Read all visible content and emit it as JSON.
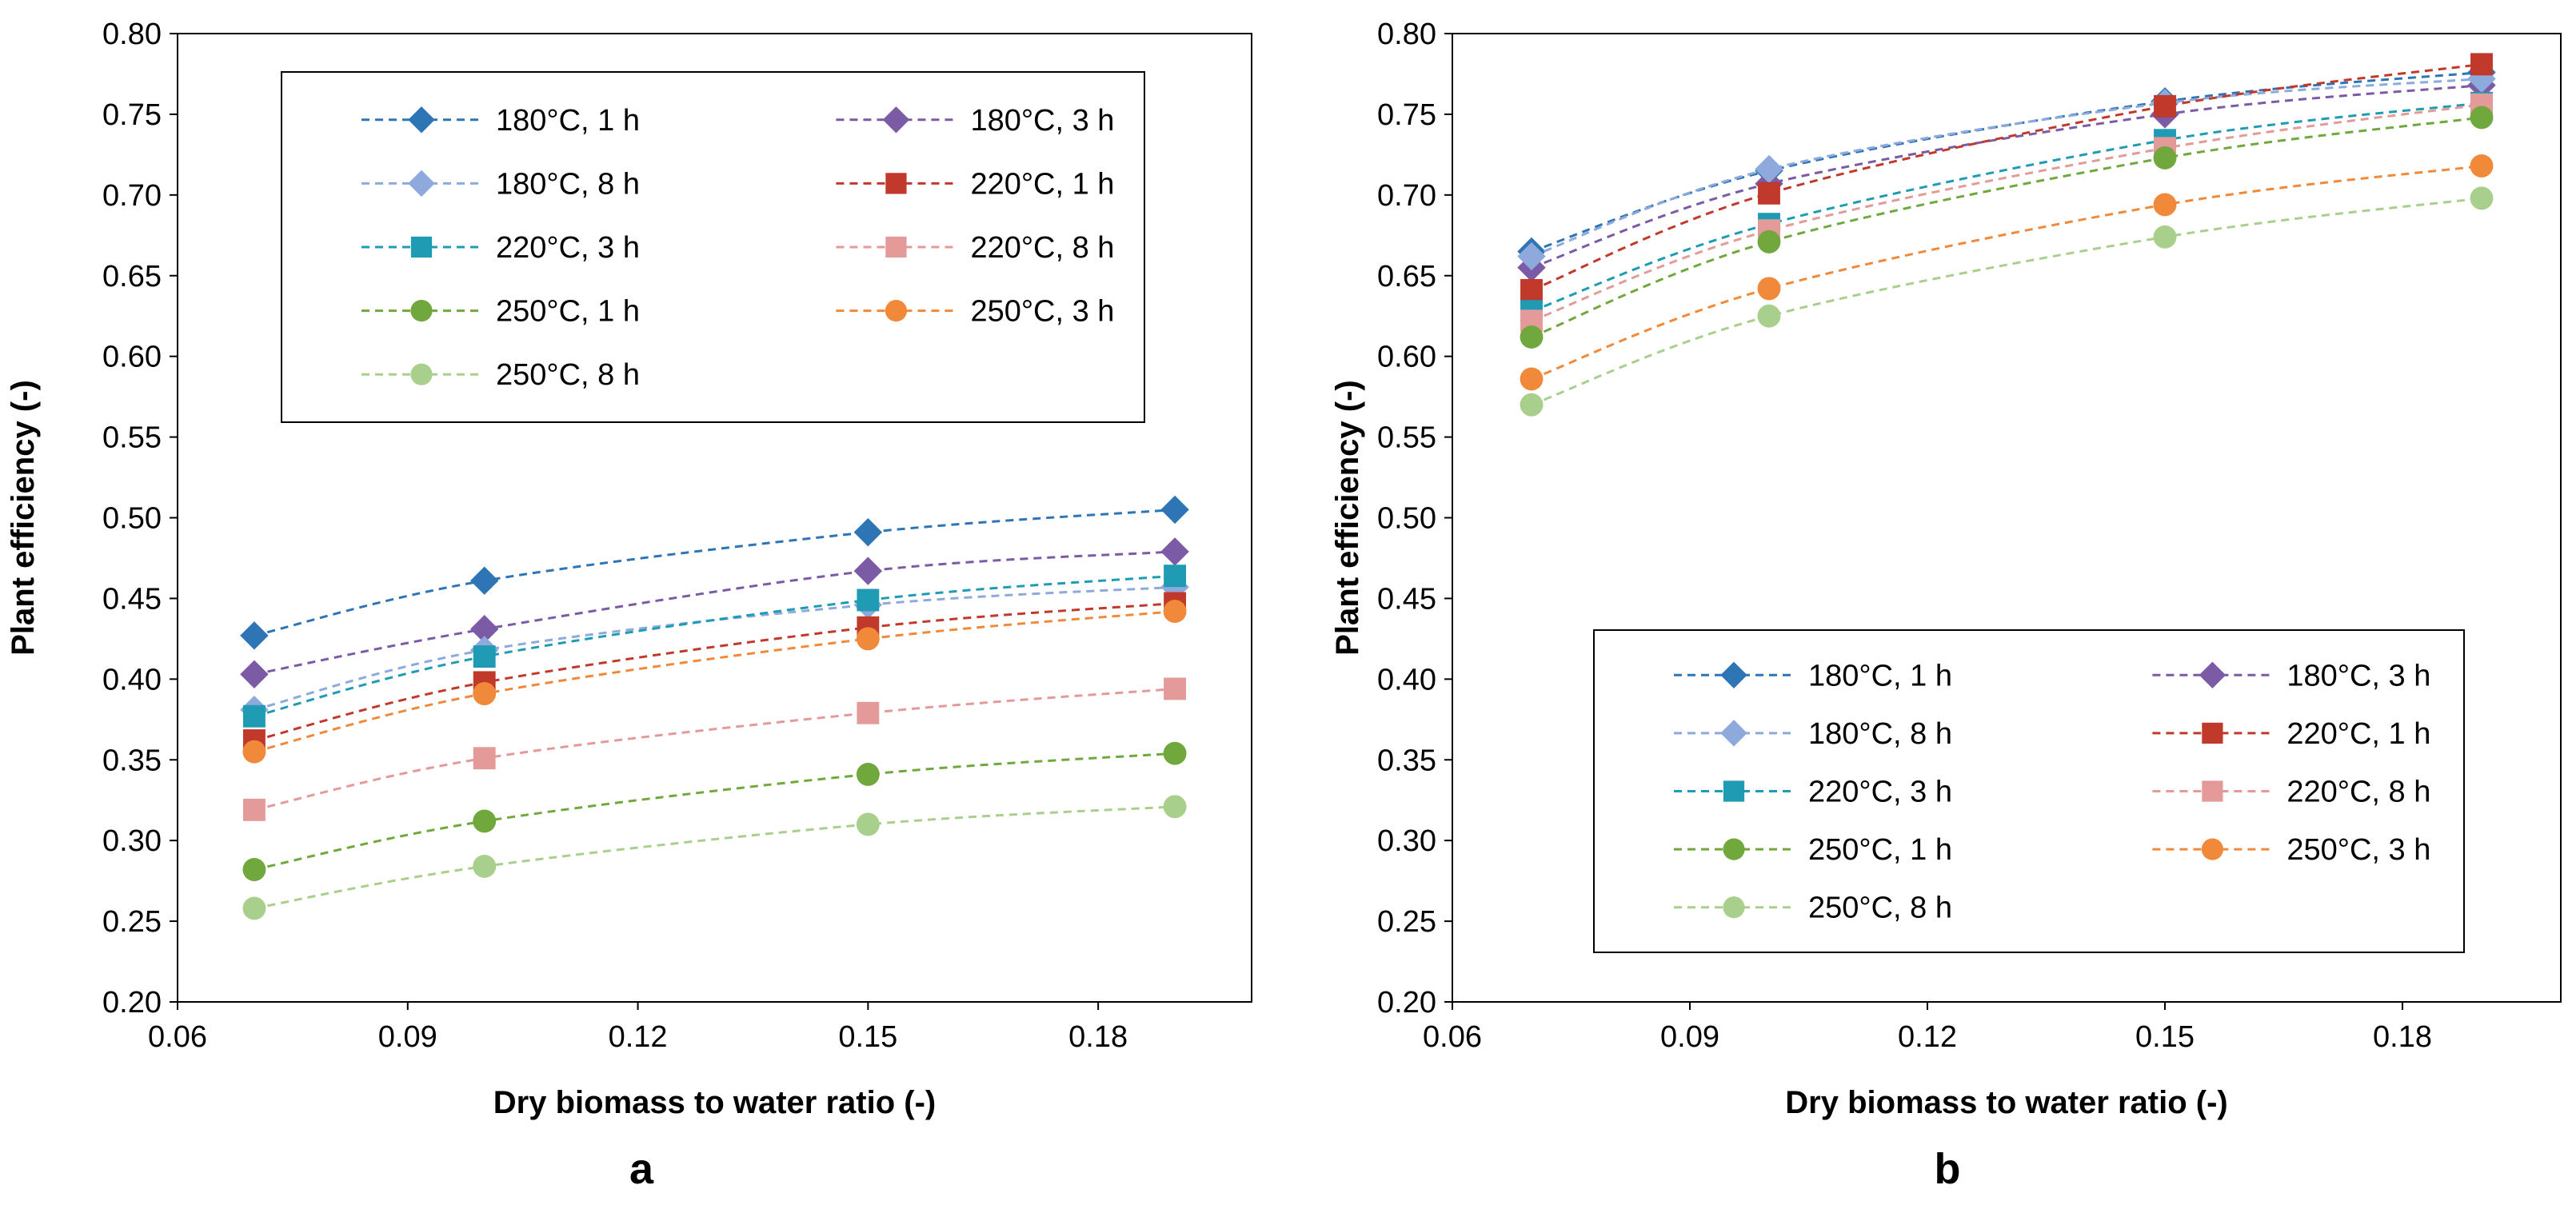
{
  "chart_data": [
    {
      "type": "line",
      "panel_label": "a",
      "xlabel": "Dry biomass to water ratio (-)",
      "ylabel": "Plant efficiency (-)",
      "xlim": [
        0.06,
        0.2
      ],
      "ylim": [
        0.2,
        0.8
      ],
      "xticks": [
        "0.06",
        "0.09",
        "0.12",
        "0.15",
        "0.18"
      ],
      "yticks": [
        "0.20",
        "0.25",
        "0.30",
        "0.35",
        "0.40",
        "0.45",
        "0.50",
        "0.55",
        "0.60",
        "0.65",
        "0.70",
        "0.75",
        "0.80"
      ],
      "legend_position": "top",
      "x": [
        0.07,
        0.1,
        0.15,
        0.19
      ],
      "series": [
        {
          "name": "180°C, 1 h",
          "marker": "diamond",
          "color": "#2E75B6",
          "values": [
            0.427,
            0.461,
            0.491,
            0.505
          ]
        },
        {
          "name": "180°C, 3 h",
          "marker": "diamond",
          "color": "#7B5AA6",
          "values": [
            0.403,
            0.431,
            0.467,
            0.479
          ]
        },
        {
          "name": "180°C, 8 h",
          "marker": "diamond",
          "color": "#8EA9DB",
          "values": [
            0.381,
            0.418,
            0.446,
            0.457
          ]
        },
        {
          "name": "220°C, 1 h",
          "marker": "square",
          "color": "#C0392B",
          "values": [
            0.362,
            0.398,
            0.432,
            0.447
          ]
        },
        {
          "name": "220°C, 3 h",
          "marker": "square",
          "color": "#1F9BB4",
          "values": [
            0.377,
            0.414,
            0.449,
            0.464
          ]
        },
        {
          "name": "220°C, 8 h",
          "marker": "square",
          "color": "#E59A9A",
          "values": [
            0.319,
            0.351,
            0.379,
            0.394
          ]
        },
        {
          "name": "250°C, 1 h",
          "marker": "circle",
          "color": "#70A83E",
          "values": [
            0.282,
            0.312,
            0.341,
            0.354
          ]
        },
        {
          "name": "250°C, 3 h",
          "marker": "circle",
          "color": "#F08A3A",
          "values": [
            0.355,
            0.391,
            0.425,
            0.442
          ]
        },
        {
          "name": "250°C, 8 h",
          "marker": "circle",
          "color": "#A9CF8C",
          "values": [
            0.258,
            0.284,
            0.31,
            0.321
          ]
        }
      ]
    },
    {
      "type": "line",
      "panel_label": "b",
      "xlabel": "Dry biomass to water ratio (-)",
      "ylabel": "Plant efficiency (-)",
      "xlim": [
        0.06,
        0.2
      ],
      "ylim": [
        0.2,
        0.8
      ],
      "xticks": [
        "0.06",
        "0.09",
        "0.12",
        "0.15",
        "0.18"
      ],
      "yticks": [
        "0.20",
        "0.25",
        "0.30",
        "0.35",
        "0.40",
        "0.45",
        "0.50",
        "0.55",
        "0.60",
        "0.65",
        "0.70",
        "0.75",
        "0.80"
      ],
      "legend_position": "bottom",
      "x": [
        0.07,
        0.1,
        0.15,
        0.19
      ],
      "series": [
        {
          "name": "180°C, 1 h",
          "marker": "diamond",
          "color": "#2E75B6",
          "values": [
            0.665,
            0.715,
            0.758,
            0.776
          ]
        },
        {
          "name": "180°C, 3 h",
          "marker": "diamond",
          "color": "#7B5AA6",
          "values": [
            0.655,
            0.707,
            0.75,
            0.768
          ]
        },
        {
          "name": "180°C, 8 h",
          "marker": "diamond",
          "color": "#8EA9DB",
          "values": [
            0.662,
            0.716,
            0.757,
            0.772
          ]
        },
        {
          "name": "220°C, 1 h",
          "marker": "square",
          "color": "#C0392B",
          "values": [
            0.641,
            0.701,
            0.755,
            0.781
          ]
        },
        {
          "name": "220°C, 3 h",
          "marker": "square",
          "color": "#1F9BB4",
          "values": [
            0.628,
            0.682,
            0.734,
            0.757
          ]
        },
        {
          "name": "220°C, 8 h",
          "marker": "square",
          "color": "#E59A9A",
          "values": [
            0.622,
            0.678,
            0.729,
            0.756
          ]
        },
        {
          "name": "250°C, 1 h",
          "marker": "circle",
          "color": "#70A83E",
          "values": [
            0.612,
            0.671,
            0.723,
            0.748
          ]
        },
        {
          "name": "250°C, 3 h",
          "marker": "circle",
          "color": "#F08A3A",
          "values": [
            0.586,
            0.642,
            0.694,
            0.718
          ]
        },
        {
          "name": "250°C, 8 h",
          "marker": "circle",
          "color": "#A9CF8C",
          "values": [
            0.57,
            0.625,
            0.674,
            0.698
          ]
        }
      ]
    }
  ]
}
